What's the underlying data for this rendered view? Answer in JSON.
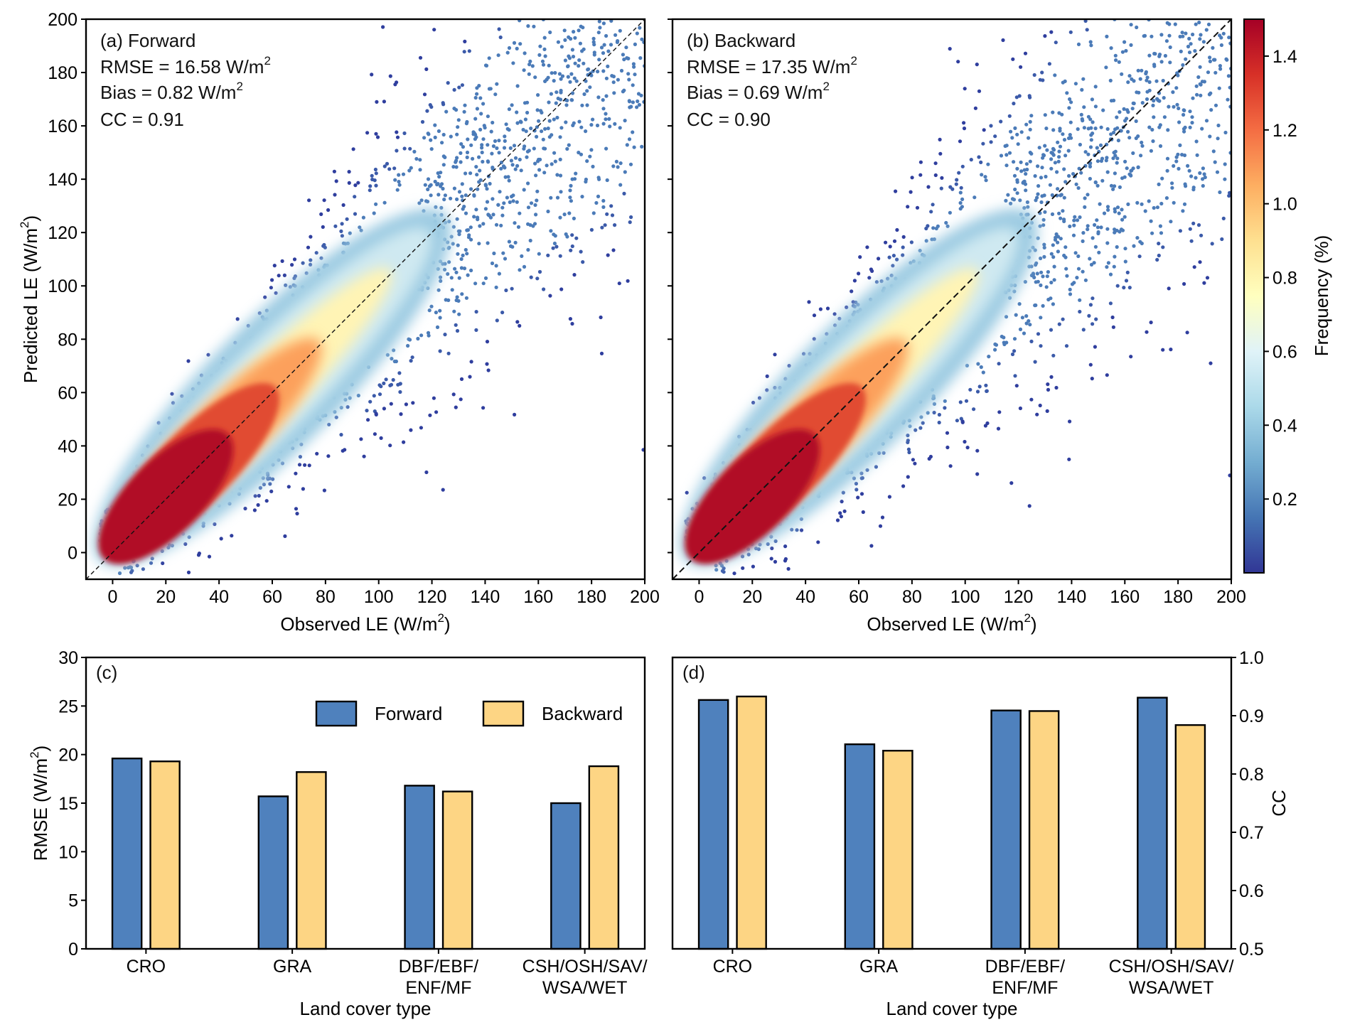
{
  "chart_data": [
    {
      "panel": "a",
      "type": "scatter",
      "annotation": [
        "(a) Forward",
        "RMSE = 16.58 W/m",
        "Bias = 0.82 W/m",
        "CC = 0.91"
      ],
      "stats": {
        "rmse": 16.58,
        "bias": 0.82,
        "cc": 0.91
      },
      "xlabel": {
        "text": "Observed LE (W/m",
        "sup": "2",
        "after": ")"
      },
      "ylabel": {
        "text": "Predicted LE (W/m",
        "sup": "2",
        "after": ")"
      },
      "xlim": [
        -10,
        200
      ],
      "ylim": [
        -10,
        200
      ],
      "xticks": [
        "0",
        "20",
        "40",
        "60",
        "80",
        "100",
        "120",
        "140",
        "160",
        "180",
        "200"
      ],
      "yticks": [
        "0",
        "20",
        "40",
        "60",
        "80",
        "100",
        "120",
        "140",
        "160",
        "180",
        "200"
      ],
      "one_to_one_line": true,
      "grid": false
    },
    {
      "panel": "b",
      "type": "scatter",
      "annotation": [
        "(b) Backward",
        "RMSE = 17.35 W/m",
        "Bias = 0.69 W/m",
        "CC = 0.90"
      ],
      "stats": {
        "rmse": 17.35,
        "bias": 0.69,
        "cc": 0.9
      },
      "xlabel": {
        "text": "Observed LE (W/m",
        "sup": "2",
        "after": ")"
      },
      "xlim": [
        -10,
        200
      ],
      "ylim": [
        -10,
        200
      ],
      "xticks": [
        "0",
        "20",
        "40",
        "60",
        "80",
        "100",
        "120",
        "140",
        "160",
        "180",
        "200"
      ],
      "one_to_one_line": true,
      "grid": false
    },
    {
      "panel": "colorbar",
      "type": "colorbar",
      "label": "Frequency (%)",
      "range": [
        0,
        1.5
      ],
      "ticks": [
        "0.2",
        "0.4",
        "0.6",
        "0.8",
        "1.0",
        "1.2",
        "1.4"
      ],
      "colormap": [
        "#313695",
        "#4575b4",
        "#74add1",
        "#abd9e9",
        "#e0f3f8",
        "#ffffbf",
        "#fee090",
        "#fdae61",
        "#f46d43",
        "#d73027",
        "#a50026"
      ]
    },
    {
      "panel": "c",
      "type": "bar",
      "label": "(c)",
      "categories": [
        [
          "CRO"
        ],
        [
          "GRA"
        ],
        [
          "DBF/EBF/",
          "ENF/MF"
        ],
        [
          "CSH/OSH/SAV/",
          "WSA/WET"
        ]
      ],
      "series": [
        {
          "name": "Forward",
          "color": "#4f81bd",
          "values": [
            19.6,
            15.7,
            16.8,
            15.0
          ]
        },
        {
          "name": "Backward",
          "color": "#fdd584",
          "values": [
            19.3,
            18.2,
            16.2,
            18.8
          ]
        }
      ],
      "xlabel": "Land cover type",
      "ylabel": {
        "text": "RMSE (W/m",
        "sup": "2",
        "after": ")"
      },
      "ylim": [
        0,
        30
      ],
      "yticks": [
        "0",
        "5",
        "10",
        "15",
        "20",
        "25",
        "30"
      ],
      "legend": "top-right"
    },
    {
      "panel": "d",
      "type": "bar",
      "label": "(d)",
      "categories": [
        [
          "CRO"
        ],
        [
          "GRA"
        ],
        [
          "DBF/EBF/",
          "ENF/MF"
        ],
        [
          "CSH/OSH/SAV/",
          "WSA/WET"
        ]
      ],
      "series": [
        {
          "name": "Forward",
          "color": "#4f81bd",
          "values": [
            0.927,
            0.851,
            0.909,
            0.931
          ]
        },
        {
          "name": "Backward",
          "color": "#fdd584",
          "values": [
            0.933,
            0.84,
            0.908,
            0.884
          ]
        }
      ],
      "xlabel": "Land cover type",
      "ylabel": "CC",
      "ylim": [
        0.5,
        1.0
      ],
      "yticks": [
        "0.5",
        "0.6",
        "0.7",
        "0.8",
        "0.9",
        "1.0"
      ],
      "yaxis_side": "right"
    }
  ]
}
